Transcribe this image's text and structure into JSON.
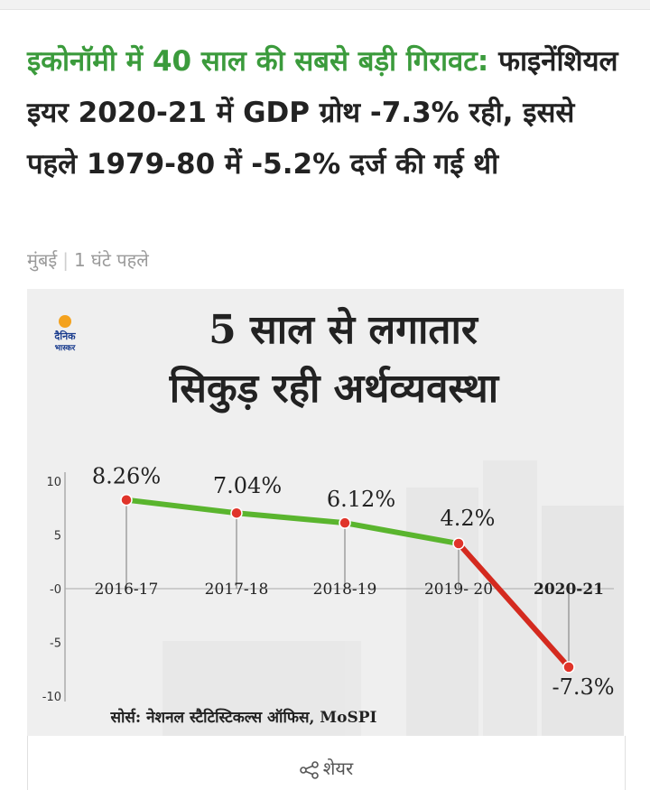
{
  "article": {
    "headline_green": "इकोनॉमी में 40 साल की सबसे बड़ी गिरावट:",
    "headline_rest": "फाइनेंशियल इयर 2020-21 में GDP ग्रोथ -7.3% रही, इससे पहले 1979-80 में -5.2% दर्ज की गई थी",
    "location": "मुंबई",
    "time": "1 घंटे पहले"
  },
  "infographic": {
    "logo_line1": "दैनिक",
    "logo_line2": "भास्कर",
    "title_line1": "5 साल से लगातार",
    "title_line2": "सिकुड़ रही अर्थव्यवस्था",
    "source": "सोर्स: नेशनल स्टैटिस्टिकल्स ऑफिस, MoSPI"
  },
  "chart_data": {
    "type": "line",
    "categories": [
      "2016-17",
      "2017-18",
      "2018-19",
      "2019- 20",
      "2020-21"
    ],
    "values": [
      8.26,
      7.04,
      6.12,
      4.2,
      -7.3
    ],
    "data_labels": [
      "8.26%",
      "7.04%",
      "6.12%",
      "4.2%",
      "-7.3%"
    ],
    "y_ticks": [
      10,
      5,
      0,
      -5,
      -10
    ],
    "y_tick_labels": [
      "10",
      "5",
      "-0",
      "-5",
      "-10"
    ],
    "ylim": [
      -10,
      10
    ],
    "colors": {
      "growth": "#5ab52e",
      "decline": "#d42a1f",
      "marker": "#e0342a"
    }
  },
  "footer": {
    "share_label": "शेयर"
  }
}
